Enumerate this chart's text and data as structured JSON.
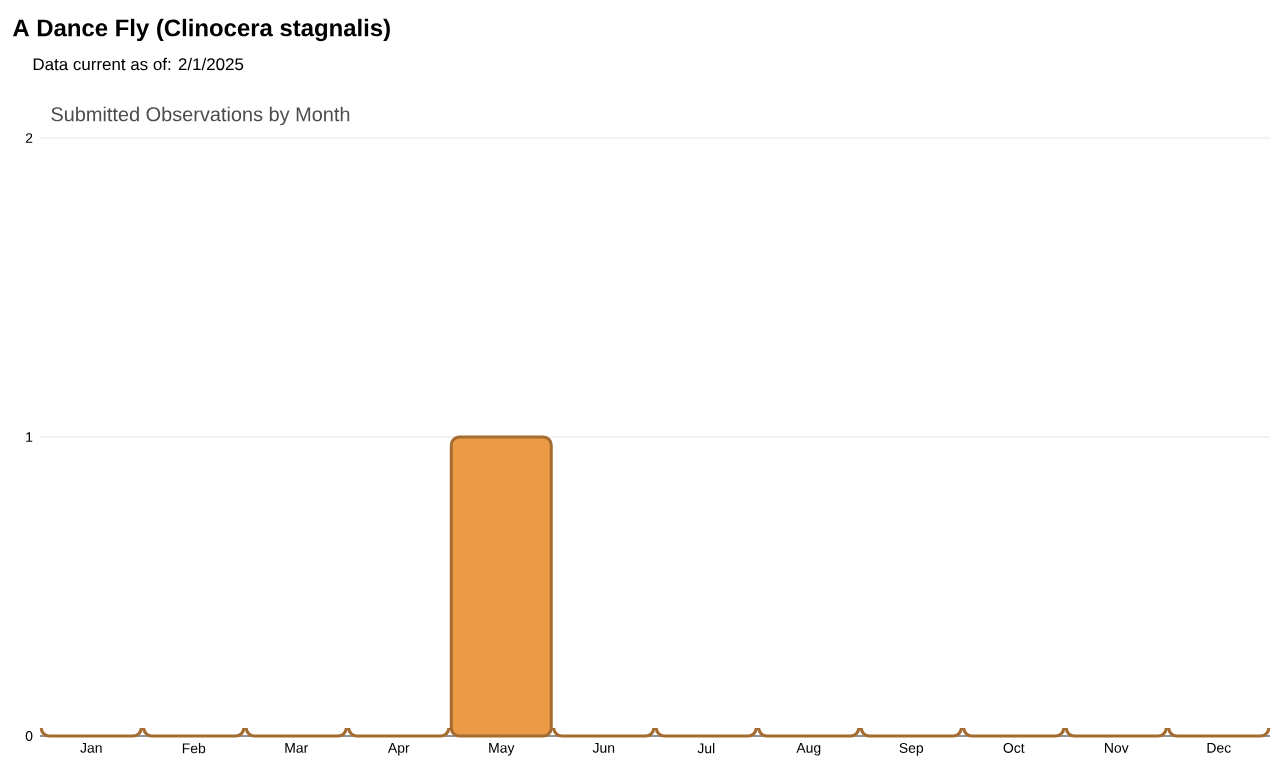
{
  "chart_data": {
    "type": "bar",
    "title": "A Dance Fly   (Clinocera stagnalis)",
    "subtitle": "Data current as of: 2/1/2025",
    "annotations": [
      "Submitted Observations by Month"
    ],
    "categories": [
      "Jan",
      "Feb",
      "Mar",
      "Apr",
      "May",
      "Jun",
      "Jul",
      "Aug",
      "Sep",
      "Oct",
      "Nov",
      "Dec"
    ],
    "values": [
      0,
      0,
      0,
      0,
      1,
      0,
      0,
      0,
      0,
      0,
      0,
      0
    ],
    "color": "#eb9a45",
    "ylim": [
      0,
      2
    ],
    "yticks": [
      0,
      1,
      2
    ],
    "grid": "y"
  }
}
